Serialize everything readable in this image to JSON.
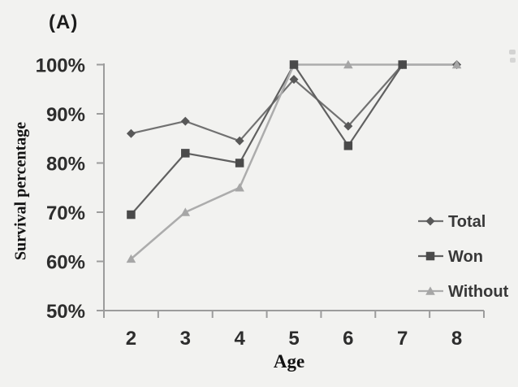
{
  "panel_label": "(A)",
  "chart_data": {
    "type": "line",
    "title": "",
    "xlabel": "Age",
    "ylabel": "Survival percentage",
    "x": [
      2,
      3,
      4,
      5,
      6,
      7,
      8
    ],
    "x_tick_labels": [
      "2",
      "3",
      "4",
      "5",
      "6",
      "7",
      "8"
    ],
    "y_ticks": [
      50,
      60,
      70,
      80,
      90,
      100
    ],
    "y_tick_labels": [
      "50%",
      "60%",
      "70%",
      "80%",
      "90%",
      "100%"
    ],
    "ylim": [
      50,
      100
    ],
    "grid": false,
    "legend_position": "right-inside",
    "series": [
      {
        "name": "Total",
        "marker": "diamond",
        "line_color": "#717171",
        "marker_color": "#585858",
        "values": [
          86,
          88.5,
          84.5,
          97,
          87.5,
          100,
          100
        ]
      },
      {
        "name": "Won",
        "marker": "square",
        "line_color": "#606060",
        "marker_color": "#4a4a4a",
        "values": [
          69.5,
          82,
          80,
          100,
          83.5,
          100,
          null
        ]
      },
      {
        "name": "Without",
        "marker": "triangle",
        "line_color": "#acacac",
        "marker_color": "#a6a6a6",
        "values": [
          60.5,
          70,
          75,
          100,
          100,
          100,
          100
        ]
      }
    ]
  },
  "colors": {
    "background": "#f2f2f0",
    "axis": "#9c9c9c",
    "tick_text": "#2d2d2d",
    "title_text": "#121212",
    "legend_text": "#383838",
    "artifact": "#b9b9b9"
  }
}
